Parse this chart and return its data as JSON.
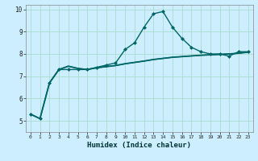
{
  "title": "",
  "xlabel": "Humidex (Indice chaleur)",
  "background_color": "#cceeff",
  "grid_color": "#aaddcc",
  "line_color": "#006666",
  "xlim": [
    -0.5,
    23.5
  ],
  "ylim": [
    4.5,
    10.2
  ],
  "yticks": [
    5,
    6,
    7,
    8,
    9,
    10
  ],
  "xticks": [
    0,
    1,
    2,
    3,
    4,
    5,
    6,
    7,
    8,
    9,
    10,
    11,
    12,
    13,
    14,
    15,
    16,
    17,
    18,
    19,
    20,
    21,
    22,
    23
  ],
  "series0_x": [
    0,
    1,
    2,
    3,
    4,
    5,
    6,
    7,
    8,
    9,
    10,
    11,
    12,
    13,
    14,
    15,
    16,
    17,
    18,
    19,
    20,
    21,
    22,
    23
  ],
  "series0_y": [
    5.3,
    5.1,
    6.7,
    7.3,
    7.3,
    7.3,
    7.3,
    7.4,
    7.5,
    7.6,
    8.2,
    8.5,
    9.2,
    9.8,
    9.9,
    9.2,
    8.7,
    8.3,
    8.1,
    8.0,
    8.0,
    7.9,
    8.1,
    8.1
  ],
  "series1_x": [
    0,
    1,
    2,
    3,
    4,
    5,
    6,
    7,
    8,
    9,
    10,
    11,
    12,
    13,
    14,
    15,
    16,
    17,
    18,
    19,
    20,
    21,
    22,
    23
  ],
  "series1_y": [
    5.3,
    5.1,
    6.7,
    7.3,
    7.45,
    7.35,
    7.3,
    7.38,
    7.43,
    7.48,
    7.56,
    7.62,
    7.68,
    7.75,
    7.8,
    7.85,
    7.88,
    7.91,
    7.94,
    7.96,
    7.98,
    8.0,
    8.03,
    8.08
  ],
  "series2_x": [
    2,
    3,
    4,
    5,
    6,
    7,
    8,
    9,
    10,
    11,
    12,
    13,
    14,
    15,
    16,
    17,
    18,
    19,
    20,
    21,
    22,
    23
  ],
  "series2_y": [
    6.7,
    7.3,
    7.45,
    7.35,
    7.3,
    7.38,
    7.43,
    7.48,
    7.56,
    7.62,
    7.68,
    7.75,
    7.8,
    7.85,
    7.88,
    7.91,
    7.94,
    7.96,
    7.98,
    8.0,
    8.03,
    8.08
  ]
}
